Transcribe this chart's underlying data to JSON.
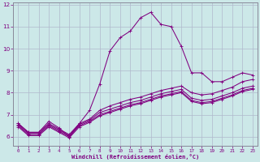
{
  "xlabel": "Windchill (Refroidissement éolien,°C)",
  "ylabel": "",
  "xlim": [
    -0.5,
    23.5
  ],
  "ylim": [
    5.6,
    12.1
  ],
  "yticks": [
    6,
    7,
    8,
    9,
    10,
    11,
    12
  ],
  "xticks": [
    0,
    1,
    2,
    3,
    4,
    5,
    6,
    7,
    8,
    9,
    10,
    11,
    12,
    13,
    14,
    15,
    16,
    17,
    18,
    19,
    20,
    21,
    22,
    23
  ],
  "bg_color": "#cce8e8",
  "line_color": "#800080",
  "grid_color": "#b0b8cc",
  "series": [
    [
      6.6,
      6.2,
      6.2,
      6.7,
      6.4,
      6.0,
      6.6,
      7.2,
      8.4,
      9.9,
      10.5,
      10.8,
      11.4,
      11.65,
      11.1,
      11.0,
      10.1,
      8.9,
      8.9,
      8.5,
      8.5,
      8.7,
      8.9,
      8.8
    ],
    [
      6.6,
      6.2,
      6.2,
      6.6,
      6.35,
      6.1,
      6.6,
      6.8,
      7.2,
      7.4,
      7.55,
      7.7,
      7.8,
      7.95,
      8.1,
      8.2,
      8.3,
      8.0,
      7.9,
      7.95,
      8.1,
      8.25,
      8.5,
      8.6
    ],
    [
      6.55,
      6.15,
      6.15,
      6.55,
      6.3,
      6.05,
      6.55,
      6.75,
      7.1,
      7.25,
      7.4,
      7.55,
      7.65,
      7.8,
      7.95,
      8.05,
      8.15,
      7.75,
      7.65,
      7.7,
      7.85,
      8.0,
      8.2,
      8.3
    ],
    [
      6.5,
      6.1,
      6.1,
      6.5,
      6.25,
      6.0,
      6.5,
      6.7,
      7.0,
      7.15,
      7.3,
      7.45,
      7.55,
      7.7,
      7.85,
      7.95,
      8.05,
      7.65,
      7.55,
      7.6,
      7.75,
      7.9,
      8.1,
      8.2
    ],
    [
      6.45,
      6.05,
      6.05,
      6.45,
      6.2,
      5.95,
      6.45,
      6.65,
      6.95,
      7.1,
      7.25,
      7.4,
      7.5,
      7.65,
      7.8,
      7.9,
      8.0,
      7.6,
      7.5,
      7.55,
      7.7,
      7.85,
      8.05,
      8.15
    ]
  ]
}
